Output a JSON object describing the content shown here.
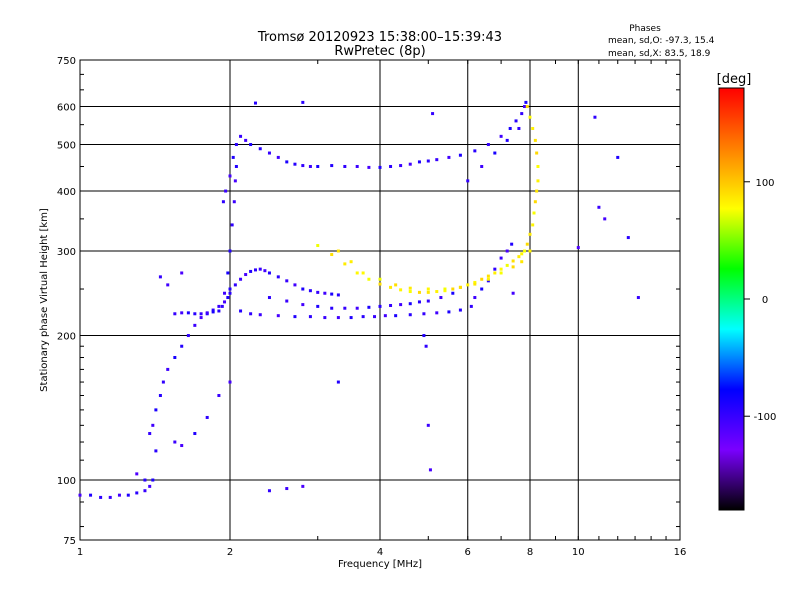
{
  "chart_data": {
    "type": "scatter",
    "title": "Tromsø 20120923 15:38:00–15:39:43",
    "subtitle": "RwPretec (8p)",
    "xlabel": "Frequency [MHz]",
    "ylabel": "Stationary phase Virtual Height [km]",
    "x_scale": "log",
    "y_scale": "log",
    "xlim": [
      1,
      16
    ],
    "ylim": [
      75,
      750
    ],
    "x_ticks": [
      1,
      2,
      4,
      6,
      8,
      10,
      16
    ],
    "y_ticks": [
      75,
      100,
      200,
      300,
      400,
      500,
      600,
      750
    ],
    "grid": true,
    "phase_info": {
      "heading": "Phases",
      "line_o": "mean, sd,O: -97.3, 15.4",
      "line_x": "mean, sd,X: 83.5, 18.9"
    },
    "colorbar": {
      "unit_label": "[deg]",
      "range": [
        -180,
        180
      ],
      "ticks": [
        100,
        0,
        -100
      ],
      "tick_labels": [
        "100",
        "0",
        "-100"
      ],
      "colormap": [
        "#000000",
        "#7a00ff",
        "#0000ff",
        "#00ffff",
        "#00ff00",
        "#ffff00",
        "#ff8000",
        "#ff0000"
      ]
    },
    "series": [
      {
        "role": "o-mode",
        "phase_mean": -97,
        "x": [
          1.0,
          1.05,
          1.1,
          1.15,
          1.2,
          1.25,
          1.3,
          1.35,
          1.38,
          1.4,
          1.42,
          1.38,
          1.4,
          1.42,
          1.45,
          1.47,
          1.5,
          1.55,
          1.6,
          1.65,
          1.7,
          1.75,
          1.8,
          1.85,
          1.9,
          1.95,
          1.98,
          2.0,
          1.55,
          1.6,
          1.65,
          1.7,
          1.75,
          1.8,
          1.85,
          1.9,
          1.93,
          1.95,
          1.98,
          2.0,
          2.02,
          2.04,
          2.05,
          2.06,
          1.94,
          1.96,
          2.0,
          2.03,
          2.06,
          2.1,
          2.15,
          2.2,
          2.3,
          2.4,
          2.5,
          2.6,
          2.7,
          2.8,
          2.9,
          3.0,
          3.2,
          3.4,
          3.6,
          3.8,
          4.0,
          4.2,
          4.4,
          4.6,
          4.8,
          5.0,
          5.2,
          5.5,
          5.8,
          6.2,
          6.6,
          7.0,
          7.3,
          7.5,
          7.7,
          7.8,
          7.85,
          2.1,
          2.2,
          2.3,
          2.5,
          2.7,
          2.9,
          3.1,
          3.3,
          3.5,
          3.7,
          3.9,
          4.1,
          4.3,
          4.6,
          4.9,
          5.2,
          5.5,
          5.8,
          6.1,
          6.2,
          6.4,
          6.6,
          6.8,
          7.0,
          7.2,
          7.35,
          2.4,
          2.6,
          2.8,
          3.0,
          3.2,
          3.4,
          3.6,
          3.8,
          4.0,
          4.2,
          4.4,
          4.6,
          4.8,
          5.0,
          5.3,
          5.6,
          2.0,
          2.05,
          2.1,
          2.15,
          2.2,
          2.25,
          2.3,
          2.35,
          2.4,
          2.5,
          2.6,
          2.7,
          2.8,
          2.9,
          3.0,
          3.1,
          3.2,
          3.3,
          6.0,
          6.4,
          6.8,
          7.2,
          7.6,
          1.55,
          1.6,
          1.7,
          1.8,
          1.9,
          2.0
        ],
        "y": [
          93,
          93,
          92,
          92,
          93,
          93,
          94,
          95,
          97,
          100,
          115,
          125,
          130,
          140,
          150,
          160,
          170,
          180,
          190,
          200,
          210,
          218,
          222,
          226,
          230,
          235,
          240,
          245,
          222,
          223,
          223,
          222,
          222,
          223,
          224,
          225,
          230,
          245,
          270,
          300,
          340,
          380,
          420,
          450,
          380,
          400,
          430,
          470,
          500,
          520,
          510,
          500,
          490,
          480,
          470,
          460,
          455,
          452,
          450,
          450,
          452,
          450,
          450,
          448,
          448,
          450,
          452,
          455,
          460,
          462,
          465,
          470,
          475,
          485,
          500,
          520,
          540,
          560,
          580,
          600,
          612,
          225,
          222,
          221,
          220,
          219,
          219,
          218,
          218,
          218,
          219,
          219,
          220,
          220,
          221,
          222,
          223,
          224,
          226,
          230,
          240,
          250,
          260,
          275,
          290,
          300,
          310,
          240,
          236,
          232,
          230,
          228,
          228,
          228,
          229,
          230,
          231,
          232,
          233,
          235,
          236,
          240,
          245,
          250,
          255,
          262,
          268,
          272,
          274,
          275,
          273,
          270,
          265,
          260,
          255,
          250,
          248,
          246,
          245,
          244,
          243,
          420,
          450,
          480,
          510,
          540,
          120,
          118,
          125,
          135,
          150,
          160
        ]
      },
      {
        "role": "x-mode",
        "phase_mean": 84,
        "x": [
          3.0,
          3.2,
          3.4,
          3.6,
          3.8,
          4.0,
          4.2,
          4.4,
          4.6,
          4.8,
          5.0,
          5.2,
          5.4,
          5.6,
          5.8,
          6.0,
          6.2,
          6.4,
          6.6,
          6.8,
          7.0,
          7.2,
          7.4,
          7.6,
          7.7,
          7.8,
          7.9,
          8.0,
          8.1,
          8.15,
          8.2,
          8.25,
          8.3,
          8.3,
          8.25,
          8.2,
          8.1,
          8.0,
          7.9,
          3.3,
          3.5,
          3.7,
          4.0,
          4.3,
          4.6,
          5.0,
          5.4,
          5.8,
          6.2,
          6.6,
          7.0,
          7.4,
          7.7,
          8.0
        ],
        "y": [
          308,
          295,
          282,
          270,
          262,
          256,
          252,
          249,
          247,
          246,
          246,
          247,
          248,
          250,
          252,
          255,
          258,
          262,
          266,
          270,
          275,
          280,
          286,
          292,
          296,
          300,
          310,
          325,
          340,
          360,
          380,
          400,
          420,
          450,
          480,
          510,
          540,
          570,
          600,
          300,
          285,
          270,
          262,
          255,
          251,
          250,
          250,
          252,
          256,
          262,
          270,
          278,
          285,
          300
        ]
      },
      {
        "role": "scattered",
        "phase_mean": -100,
        "x": [
          1.3,
          1.35,
          1.45,
          1.5,
          1.6,
          2.25,
          2.4,
          2.6,
          2.8,
          4.9,
          4.95,
          5.0,
          5.05,
          3.3,
          10.8,
          11.0,
          11.3,
          12.0,
          12.6,
          13.2,
          7.4,
          10.0,
          2.8,
          5.1
        ],
        "y": [
          103,
          100,
          265,
          255,
          270,
          610,
          95,
          96,
          97,
          200,
          190,
          130,
          105,
          160,
          570,
          370,
          350,
          470,
          320,
          240,
          245,
          305,
          612,
          580
        ]
      }
    ]
  }
}
